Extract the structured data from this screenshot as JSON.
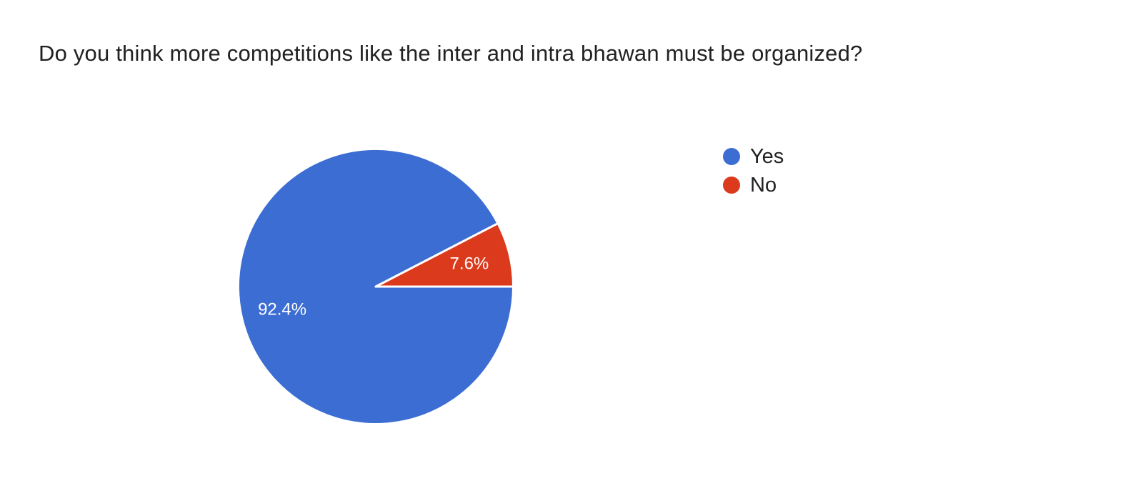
{
  "question": {
    "title": "Do you think more competitions like the inter and intra bhawan must be organized?"
  },
  "chart_data": {
    "type": "pie",
    "title": "Do you think more competitions like the inter and intra bhawan must be organized?",
    "categories": [
      "Yes",
      "No"
    ],
    "values": [
      92.4,
      7.6
    ],
    "slice_labels": [
      "92.4%",
      "7.6%"
    ],
    "colors": [
      "#3C6DD3",
      "#DB3A1D"
    ],
    "slice_label_color": "#FFFFFF",
    "separator_color": "#FFFFFF",
    "start_angle_deg": 0,
    "direction": "clockwise",
    "legend_position": "right",
    "legend_text_color": "#212121"
  }
}
